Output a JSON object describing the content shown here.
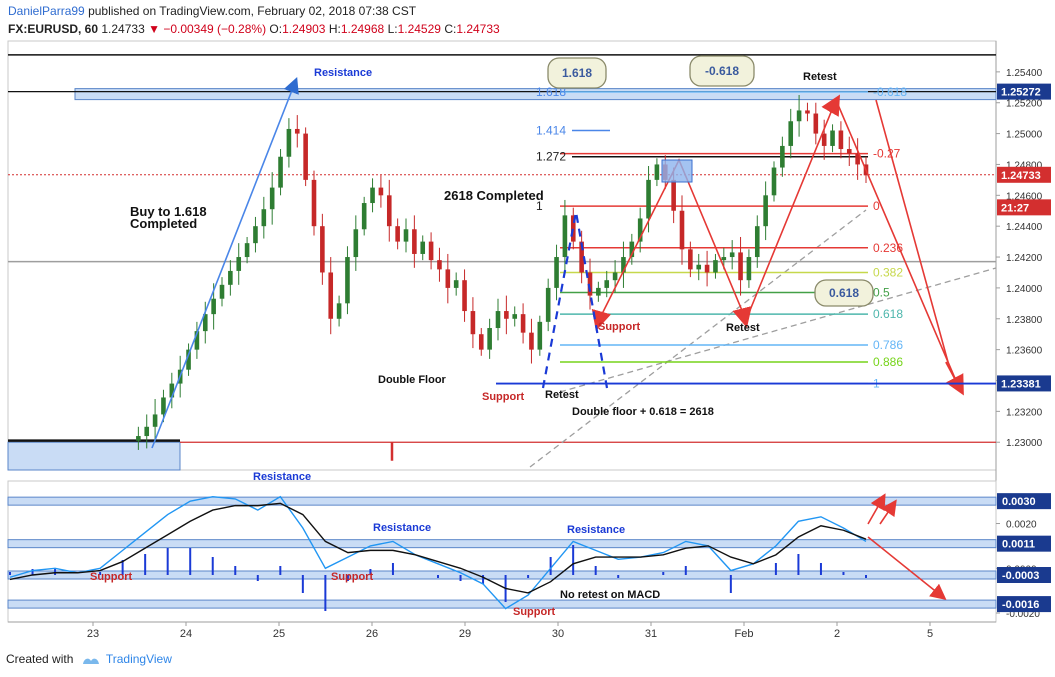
{
  "header": {
    "author": "DanielParra99",
    "published_text": "published on TradingView.com, February 02, 2018 07:38 CST",
    "symbol": "FX:EURUSD, 60",
    "last": "1.24733",
    "change": "▼ −0.00349 (−0.28%)",
    "o_label": "O:",
    "o_value": "1.24903",
    "h_label": "H:",
    "h_value": "1.24968",
    "l_label": "L:",
    "l_value": "1.24529",
    "c_label": "C:",
    "c_value": "1.24733"
  },
  "footer": {
    "created_with": "Created with",
    "brand": "TradingView"
  },
  "colors": {
    "up": "#2e7d32",
    "down": "#c62828",
    "blue_line": "#1565c0",
    "zone": "#bcd3f3",
    "price_tag": "#d32f2f",
    "level_tag": "#1a3a8f",
    "fib_red": "#e53935",
    "fib_yellow": "#c6d84b",
    "fib_green": "#43a047",
    "fib_teal": "#4db6ac",
    "fib_blue": "#64b5f6",
    "fib_lime": "#76d41a"
  },
  "chart_data": [
    {
      "type": "candlestick",
      "title": "",
      "xlabel": "",
      "ylabel": "",
      "x_ticks": [
        "23",
        "24",
        "25",
        "26",
        "29",
        "30",
        "31",
        "Feb",
        "2",
        "5"
      ],
      "y_ticks": [
        "1.25400",
        "1.25200",
        "1.25000",
        "1.24800",
        "1.24600",
        "1.24400",
        "1.24200",
        "1.24000",
        "1.23800",
        "1.23600",
        "1.23400",
        "1.23200",
        "1.23000"
      ],
      "ylim": [
        1.2282,
        1.256
      ],
      "path_points": [
        1.2301,
        1.2304,
        1.231,
        1.2318,
        1.2329,
        1.2338,
        1.2347,
        1.236,
        1.2372,
        1.2383,
        1.2393,
        1.2402,
        1.2411,
        1.242,
        1.2429,
        1.244,
        1.2451,
        1.2465,
        1.2485,
        1.2503,
        1.25,
        1.247,
        1.244,
        1.241,
        1.238,
        1.239,
        1.242,
        1.2438,
        1.2455,
        1.2465,
        1.246,
        1.244,
        1.243,
        1.2438,
        1.2422,
        1.243,
        1.2418,
        1.2412,
        1.24,
        1.2405,
        1.2385,
        1.237,
        1.236,
        1.2374,
        1.2385,
        1.238,
        1.2383,
        1.2371,
        1.236,
        1.2378,
        1.24,
        1.242,
        1.2447,
        1.243,
        1.241,
        1.2395,
        1.24,
        1.2405,
        1.241,
        1.242,
        1.243,
        1.2445,
        1.247,
        1.248,
        1.247,
        1.245,
        1.2425,
        1.2412,
        1.2415,
        1.241,
        1.2418,
        1.242,
        1.2423,
        1.2405,
        1.242,
        1.244,
        1.246,
        1.2478,
        1.2492,
        1.2508,
        1.2515,
        1.2513,
        1.25,
        1.2492,
        1.2502,
        1.249,
        1.2487,
        1.248,
        1.2473
      ],
      "last_price": "1.24733",
      "price_tags": [
        {
          "label": "1.25272",
          "value": 1.25272,
          "kind": "level"
        },
        {
          "label": "1.24733",
          "value": 1.24733,
          "kind": "price"
        },
        {
          "label": "21:27",
          "value": 1.24522,
          "kind": "price"
        },
        {
          "label": "1.23381",
          "value": 1.23381,
          "kind": "level"
        }
      ],
      "horizontal_levels": [
        1.2551,
        1.25272,
        1.24733,
        1.2417,
        1.23
      ],
      "fibonacci_extension": [
        {
          "label": "1.618",
          "value": 1.2527
        },
        {
          "label": "1.414",
          "value": 1.2502
        },
        {
          "label": "1.272",
          "value": 1.2485
        },
        {
          "label": "1",
          "value": 1.2453
        }
      ],
      "fibonacci_retracement": [
        {
          "label": "-0.618",
          "value": 1.2527,
          "color": "fib_blue"
        },
        {
          "label": "-0.27",
          "value": 1.2487,
          "color": "fib_red"
        },
        {
          "label": "0",
          "value": 1.2453,
          "color": "fib_red"
        },
        {
          "label": "0.236",
          "value": 1.2426,
          "color": "fib_red"
        },
        {
          "label": "0.382",
          "value": 1.241,
          "color": "fib_yellow"
        },
        {
          "label": "0.5",
          "value": 1.2397,
          "color": "fib_green"
        },
        {
          "label": "0.618",
          "value": 1.2383,
          "color": "fib_teal"
        },
        {
          "label": "0.786",
          "value": 1.2363,
          "color": "fib_blue"
        },
        {
          "label": "0.886",
          "value": 1.2352,
          "color": "fib_lime"
        },
        {
          "label": "1",
          "value": 1.2338,
          "color": "fib_blue"
        }
      ],
      "annotations": [
        "Resistance",
        "Buy to 1.618",
        "Completed",
        "2618 Completed",
        "Double Floor",
        "Support",
        "Retest",
        "Double floor + 0.618 = 2618",
        "Support",
        "Retest",
        "Retest",
        "1.618",
        "-0.618",
        "0.618"
      ]
    },
    {
      "type": "line",
      "title": "",
      "indicator": "MACD",
      "y_ticks": [
        "0.0020",
        "0.0000",
        "-0.0020"
      ],
      "ylim": [
        -0.0024,
        0.0039
      ],
      "level_tags": [
        "0.0030",
        "0.0011",
        "-0.0003",
        "-0.0016"
      ],
      "levels": [
        0.003,
        0.0011,
        -0.0003,
        -0.0016
      ],
      "series": [
        {
          "name": "",
          "values": [
            -0.0004,
            -0.0001,
            0.0,
            -0.0002,
            0.0,
            0.0008,
            0.0016,
            0.0024,
            0.003,
            0.0032,
            0.0031,
            0.0026,
            0.0032,
            0.0018,
            0.0,
            0.0005,
            0.001,
            0.0012,
            0.0006,
            0.0002,
            -0.0002,
            -0.0007,
            -0.0018,
            -0.0012,
            0.0,
            0.0012,
            0.0008,
            0.0004,
            0.0005,
            0.0007,
            0.0012,
            0.001,
            -0.0001,
            0.0002,
            0.001,
            0.0021,
            0.0023,
            0.0018,
            0.0012
          ]
        },
        {
          "name": "",
          "values": [
            -0.0005,
            -0.0003,
            -0.0002,
            -0.0002,
            -0.0001,
            0.0003,
            0.0009,
            0.0015,
            0.0021,
            0.0026,
            0.0028,
            0.0028,
            0.0029,
            0.0024,
            0.0012,
            0.0007,
            0.0008,
            0.0008,
            0.0006,
            0.0003,
            0.0,
            -0.0004,
            -0.0009,
            -0.0011,
            -0.0006,
            0.0002,
            0.0005,
            0.0005,
            0.0005,
            0.0006,
            0.0009,
            0.001,
            0.0005,
            0.0002,
            0.0006,
            0.0014,
            0.0019,
            0.0017,
            0.0013
          ]
        }
      ],
      "annotations": [
        "Resistance",
        "Resistance",
        "Resistance",
        "Support",
        "Support",
        "Support",
        "No retest on MACD"
      ]
    }
  ]
}
